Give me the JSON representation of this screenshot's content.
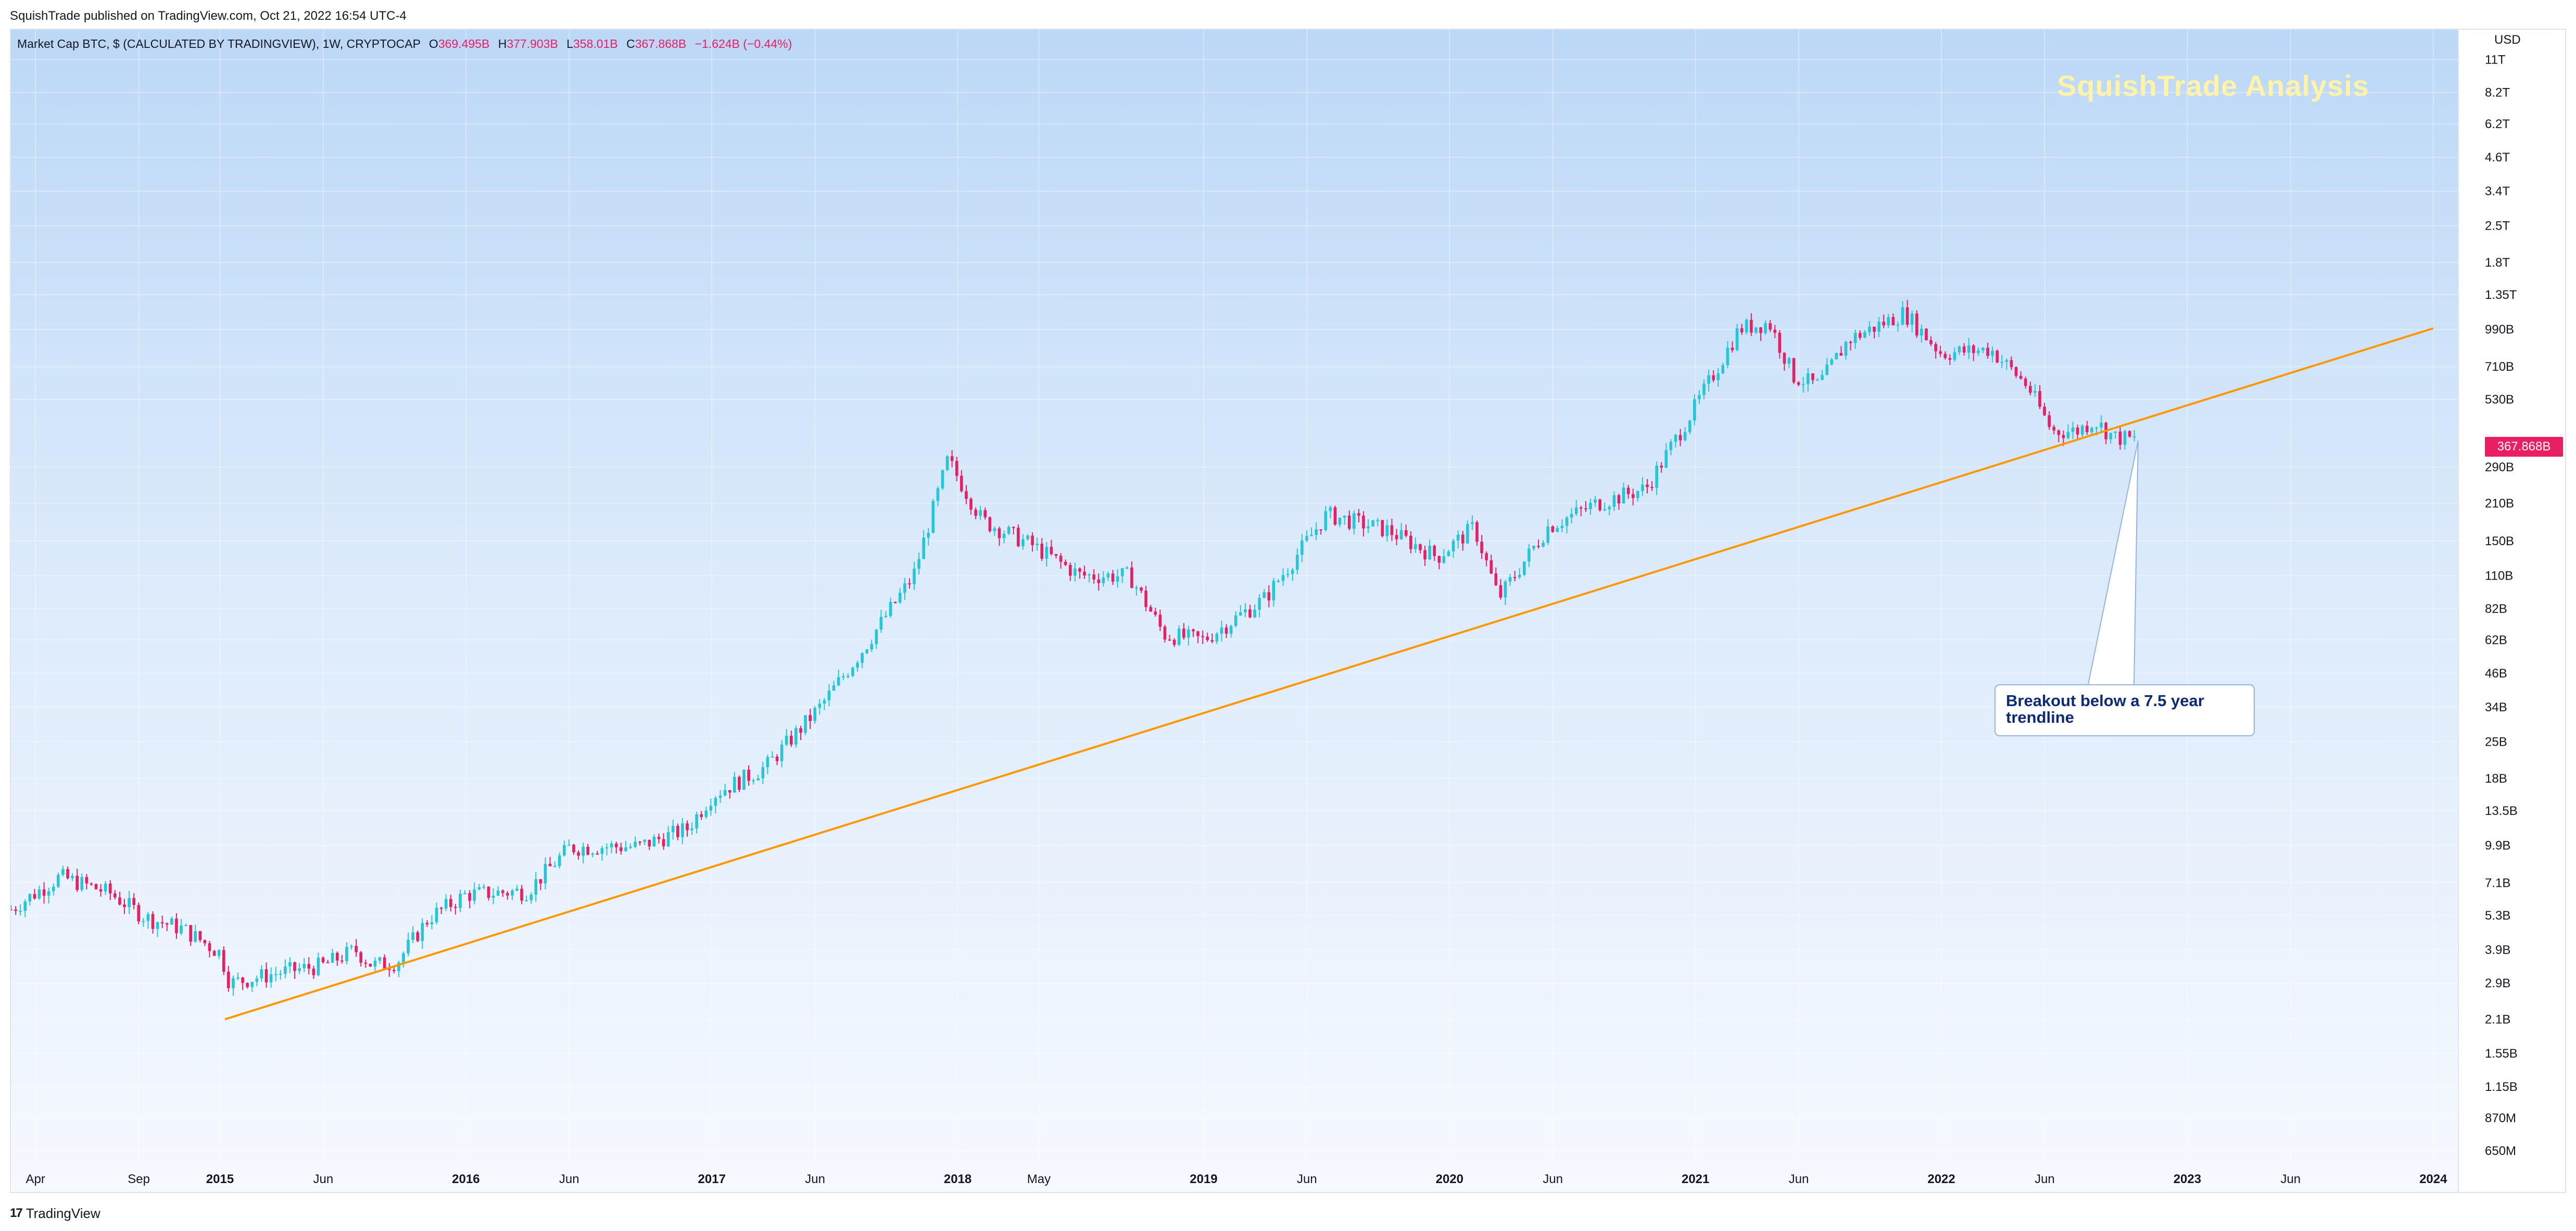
{
  "published": "SquishTrade published on TradingView.com, Oct 21, 2022 16:54 UTC-4",
  "legend": {
    "title": "Market Cap BTC, $ (CALCULATED BY TRADINGVIEW), 1W, CRYPTOCAP",
    "o_label": "O",
    "o_value": "369.495B",
    "h_label": "H",
    "h_value": "377.903B",
    "l_label": "L",
    "l_value": "358.01B",
    "c_label": "C",
    "c_value": "367.868B",
    "change": "−1.624B (−0.44%)"
  },
  "watermark": "SquishTrade Analysis",
  "currency": "USD",
  "last_price_tag": "367.868B",
  "annotation": "Breakout below a 7.5 year trendline",
  "footer": {
    "logo": "17",
    "brand": "TradingView"
  },
  "colors": {
    "up": "#26c6da",
    "down": "#e91e63",
    "trendline": "#ff9800",
    "accent": "#e91e63"
  },
  "chart_data": {
    "type": "candlestick",
    "title": "Market Cap BTC, $ (CALCULATED BY TRADINGVIEW), 1W, CRYPTOCAP",
    "y_scale": "log",
    "ylim": [
      0.6,
      12500
    ],
    "y_unit": "billions USD",
    "y_ticks": [
      {
        "v": 11000,
        "label": "11T"
      },
      {
        "v": 8200,
        "label": "8.2T"
      },
      {
        "v": 6200,
        "label": "6.2T"
      },
      {
        "v": 4600,
        "label": "4.6T"
      },
      {
        "v": 3400,
        "label": "3.4T"
      },
      {
        "v": 2500,
        "label": "2.5T"
      },
      {
        "v": 1800,
        "label": "1.8T"
      },
      {
        "v": 1350,
        "label": "1.35T"
      },
      {
        "v": 990,
        "label": "990B"
      },
      {
        "v": 710,
        "label": "710B"
      },
      {
        "v": 530,
        "label": "530B"
      },
      {
        "v": 290,
        "label": "290B"
      },
      {
        "v": 210,
        "label": "210B"
      },
      {
        "v": 150,
        "label": "150B"
      },
      {
        "v": 110,
        "label": "110B"
      },
      {
        "v": 82,
        "label": "82B"
      },
      {
        "v": 62,
        "label": "62B"
      },
      {
        "v": 46,
        "label": "46B"
      },
      {
        "v": 34,
        "label": "34B"
      },
      {
        "v": 25,
        "label": "25B"
      },
      {
        "v": 18,
        "label": "18B"
      },
      {
        "v": 13.5,
        "label": "13.5B"
      },
      {
        "v": 9.9,
        "label": "9.9B"
      },
      {
        "v": 7.1,
        "label": "7.1B"
      },
      {
        "v": 5.3,
        "label": "5.3B"
      },
      {
        "v": 3.9,
        "label": "3.9B"
      },
      {
        "v": 2.9,
        "label": "2.9B"
      },
      {
        "v": 2.1,
        "label": "2.1B"
      },
      {
        "v": 1.55,
        "label": "1.55B"
      },
      {
        "v": 1.15,
        "label": "1.15B"
      },
      {
        "v": 0.87,
        "label": "870M"
      },
      {
        "v": 0.65,
        "label": "650M"
      }
    ],
    "x_ticks": [
      {
        "t": 2014.25,
        "label": "Apr",
        "bold": false
      },
      {
        "t": 2014.67,
        "label": "Sep",
        "bold": false
      },
      {
        "t": 2015.0,
        "label": "2015",
        "bold": true
      },
      {
        "t": 2015.42,
        "label": "Jun",
        "bold": false
      },
      {
        "t": 2016.0,
        "label": "2016",
        "bold": true
      },
      {
        "t": 2016.42,
        "label": "Jun",
        "bold": false
      },
      {
        "t": 2017.0,
        "label": "2017",
        "bold": true
      },
      {
        "t": 2017.42,
        "label": "Jun",
        "bold": false
      },
      {
        "t": 2018.0,
        "label": "2018",
        "bold": true
      },
      {
        "t": 2018.33,
        "label": "May",
        "bold": false
      },
      {
        "t": 2019.0,
        "label": "2019",
        "bold": true
      },
      {
        "t": 2019.42,
        "label": "Jun",
        "bold": false
      },
      {
        "t": 2020.0,
        "label": "2020",
        "bold": true
      },
      {
        "t": 2020.42,
        "label": "Jun",
        "bold": false
      },
      {
        "t": 2021.0,
        "label": "2021",
        "bold": true
      },
      {
        "t": 2021.42,
        "label": "Jun",
        "bold": false
      },
      {
        "t": 2022.0,
        "label": "2022",
        "bold": true
      },
      {
        "t": 2022.42,
        "label": "Jun",
        "bold": false
      },
      {
        "t": 2023.0,
        "label": "2023",
        "bold": true
      },
      {
        "t": 2023.42,
        "label": "Jun",
        "bold": false
      },
      {
        "t": 2024.0,
        "label": "2024",
        "bold": true
      }
    ],
    "xlim": [
      2014.15,
      2024.1
    ],
    "trendline": {
      "t1": 2015.02,
      "v1": 2.1,
      "t2": 2024.0,
      "v2": 1000
    },
    "close_path": [
      [
        2014.15,
        5.6
      ],
      [
        2014.35,
        7.5
      ],
      [
        2014.55,
        6.5
      ],
      [
        2014.7,
        5.2
      ],
      [
        2014.85,
        4.7
      ],
      [
        2015.0,
        3.8
      ],
      [
        2015.04,
        2.9
      ],
      [
        2015.25,
        3.2
      ],
      [
        2015.42,
        3.4
      ],
      [
        2015.55,
        3.9
      ],
      [
        2015.62,
        3.4
      ],
      [
        2015.72,
        3.5
      ],
      [
        2015.85,
        5.2
      ],
      [
        2016.0,
        6.4
      ],
      [
        2016.25,
        6.6
      ],
      [
        2016.42,
        9.7
      ],
      [
        2016.55,
        9.8
      ],
      [
        2016.7,
        9.8
      ],
      [
        2016.9,
        11.5
      ],
      [
        2017.0,
        15.5
      ],
      [
        2017.22,
        20.0
      ],
      [
        2017.45,
        35.0
      ],
      [
        2017.62,
        58.0
      ],
      [
        2017.82,
        110.0
      ],
      [
        2017.96,
        310.0
      ],
      [
        2018.1,
        180.0
      ],
      [
        2018.3,
        145.0
      ],
      [
        2018.5,
        110.0
      ],
      [
        2018.7,
        110.0
      ],
      [
        2018.84,
        65.0
      ],
      [
        2019.0,
        62.0
      ],
      [
        2019.25,
        90.0
      ],
      [
        2019.5,
        190.0
      ],
      [
        2019.75,
        165.0
      ],
      [
        2019.95,
        130.0
      ],
      [
        2020.1,
        170.0
      ],
      [
        2020.2,
        90.0
      ],
      [
        2020.4,
        170.0
      ],
      [
        2020.6,
        210.0
      ],
      [
        2020.8,
        240.0
      ],
      [
        2021.0,
        500.0
      ],
      [
        2021.18,
        1000.0
      ],
      [
        2021.3,
        1050.0
      ],
      [
        2021.4,
        650.0
      ],
      [
        2021.5,
        600.0
      ],
      [
        2021.62,
        900.0
      ],
      [
        2021.85,
        1150.0
      ],
      [
        2022.0,
        800.0
      ],
      [
        2022.2,
        830.0
      ],
      [
        2022.35,
        600.0
      ],
      [
        2022.45,
        400.0
      ],
      [
        2022.55,
        400.0
      ],
      [
        2022.62,
        440.0
      ],
      [
        2022.7,
        380.0
      ],
      [
        2022.8,
        367.868
      ]
    ]
  }
}
